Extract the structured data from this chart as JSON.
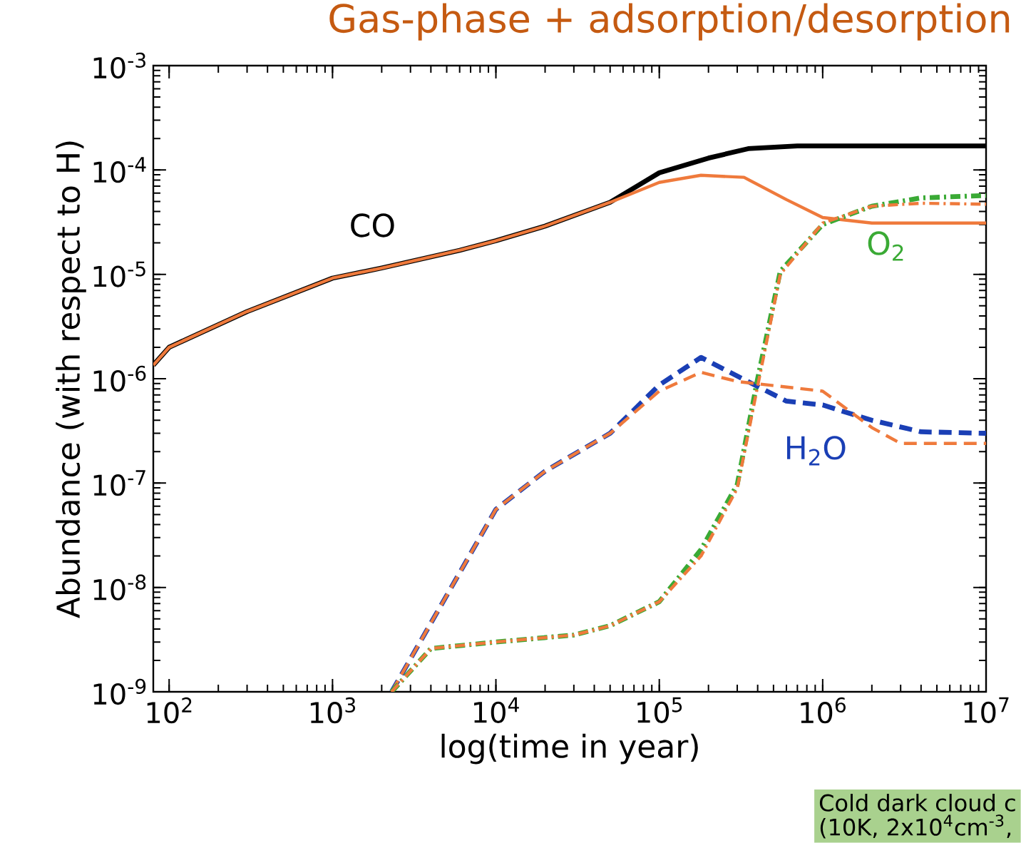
{
  "chart_data": {
    "type": "line",
    "title": "Gas-phase + adsorption/desorption",
    "xlabel": "log(time in year)",
    "ylabel": "Abundance (with respect to H)",
    "log": "xy",
    "grid": false,
    "xlim": [
      80,
      10000000
    ],
    "ylim": [
      1e-09,
      0.001
    ],
    "xticks": [
      {
        "value": 100,
        "label": "10$^{2}$"
      },
      {
        "value": 1000,
        "label": "10$^{3}$"
      },
      {
        "value": 10000,
        "label": "10$^{4}$"
      },
      {
        "value": 100000,
        "label": "10$^{5}$"
      },
      {
        "value": 1000000,
        "label": "10$^{6}$"
      },
      {
        "value": 10000000,
        "label": "10$^{7}$"
      }
    ],
    "yticks": [
      {
        "value": 1e-09,
        "label": "10$^{-9}$"
      },
      {
        "value": 1e-08,
        "label": "10$^{-8}$"
      },
      {
        "value": 1e-07,
        "label": "10$^{-7}$"
      },
      {
        "value": 1e-06,
        "label": "10$^{-6}$"
      },
      {
        "value": 1e-05,
        "label": "10$^{-5}$"
      },
      {
        "value": 0.0001,
        "label": "10$^{-4}$"
      },
      {
        "value": 0.001,
        "label": "10$^{-3}$"
      }
    ],
    "series": [
      {
        "name": "CO",
        "color": "#000000",
        "line_style": "solid",
        "x": [
          80,
          100,
          300,
          1000,
          2000,
          6000,
          10000,
          20000,
          50000,
          100000,
          200000,
          350000,
          700000,
          10000000
        ],
        "values": [
          1.35e-06,
          2e-06,
          4.4e-06,
          9.2e-06,
          1.15e-05,
          1.7e-05,
          2.1e-05,
          2.9e-05,
          4.9e-05,
          9.4e-05,
          0.00013,
          0.00016,
          0.00017,
          0.00017
        ]
      },
      {
        "color": "#ef7a3c",
        "line_style": "solid",
        "x": [
          80,
          100,
          300,
          1000,
          2000,
          6000,
          10000,
          20000,
          50000,
          100000,
          180000,
          330000,
          600000,
          1000000,
          2000000,
          10000000
        ],
        "values": [
          1.35e-06,
          2e-06,
          4.4e-06,
          9.2e-06,
          1.15e-05,
          1.7e-05,
          2.1e-05,
          2.9e-05,
          4.9e-05,
          7.6e-05,
          8.9e-05,
          8.5e-05,
          5.2e-05,
          3.5e-05,
          3.1e-05,
          3.1e-05
        ]
      },
      {
        "name": "H$_{2}$O",
        "color": "#1a3fb5",
        "line_style": "dashed",
        "x": [
          2300,
          10000,
          20000,
          50000,
          100000,
          180000,
          300000,
          600000,
          1000000,
          2000000,
          4000000,
          10000000
        ],
        "values": [
          1e-09,
          5.6e-08,
          1.3e-07,
          3e-07,
          8.7e-07,
          1.6e-06,
          1.06e-06,
          6.1e-07,
          5.6e-07,
          4e-07,
          3.1e-07,
          3e-07
        ]
      },
      {
        "color": "#ef7a3c",
        "line_style": "dashed",
        "x": [
          2300,
          10000,
          20000,
          50000,
          100000,
          180000,
          300000,
          1000000,
          2000000,
          3000000,
          10000000
        ],
        "values": [
          1e-09,
          5.6e-08,
          1.3e-07,
          3e-07,
          7.6e-07,
          1.15e-06,
          9.4e-07,
          7.6e-07,
          3.4e-07,
          2.4e-07,
          2.4e-07
        ]
      },
      {
        "name": "O$_{2}$",
        "color": "#3aaa35",
        "line_style": "dashdot",
        "x": [
          2300,
          4000,
          10000,
          30000,
          50000,
          100000,
          180000,
          300000,
          400000,
          550000,
          1000000,
          2000000,
          4000000,
          10000000
        ],
        "values": [
          1e-09,
          2.6e-09,
          3e-09,
          3.5e-09,
          4.3e-09,
          7.3e-09,
          2.3e-08,
          9.7e-08,
          1e-06,
          1.07e-05,
          3e-05,
          4.5e-05,
          5.4e-05,
          5.7e-05
        ]
      },
      {
        "color": "#ef7a3c",
        "line_style": "dashdot",
        "x": [
          2300,
          4000,
          10000,
          30000,
          50000,
          100000,
          180000,
          300000,
          400000,
          550000,
          1000000,
          2000000,
          4000000,
          10000000
        ],
        "values": [
          1e-09,
          2.6e-09,
          3e-09,
          3.5e-09,
          4.3e-09,
          7.3e-09,
          2e-08,
          8.9e-08,
          8.5e-07,
          1e-05,
          3.1e-05,
          4.5e-05,
          4.8e-05,
          4.7e-05
        ]
      }
    ],
    "annotations": [
      "Cold dark cloud c",
      "(10K, 2x10$^{4}$cm$^{-3}$,"
    ]
  }
}
